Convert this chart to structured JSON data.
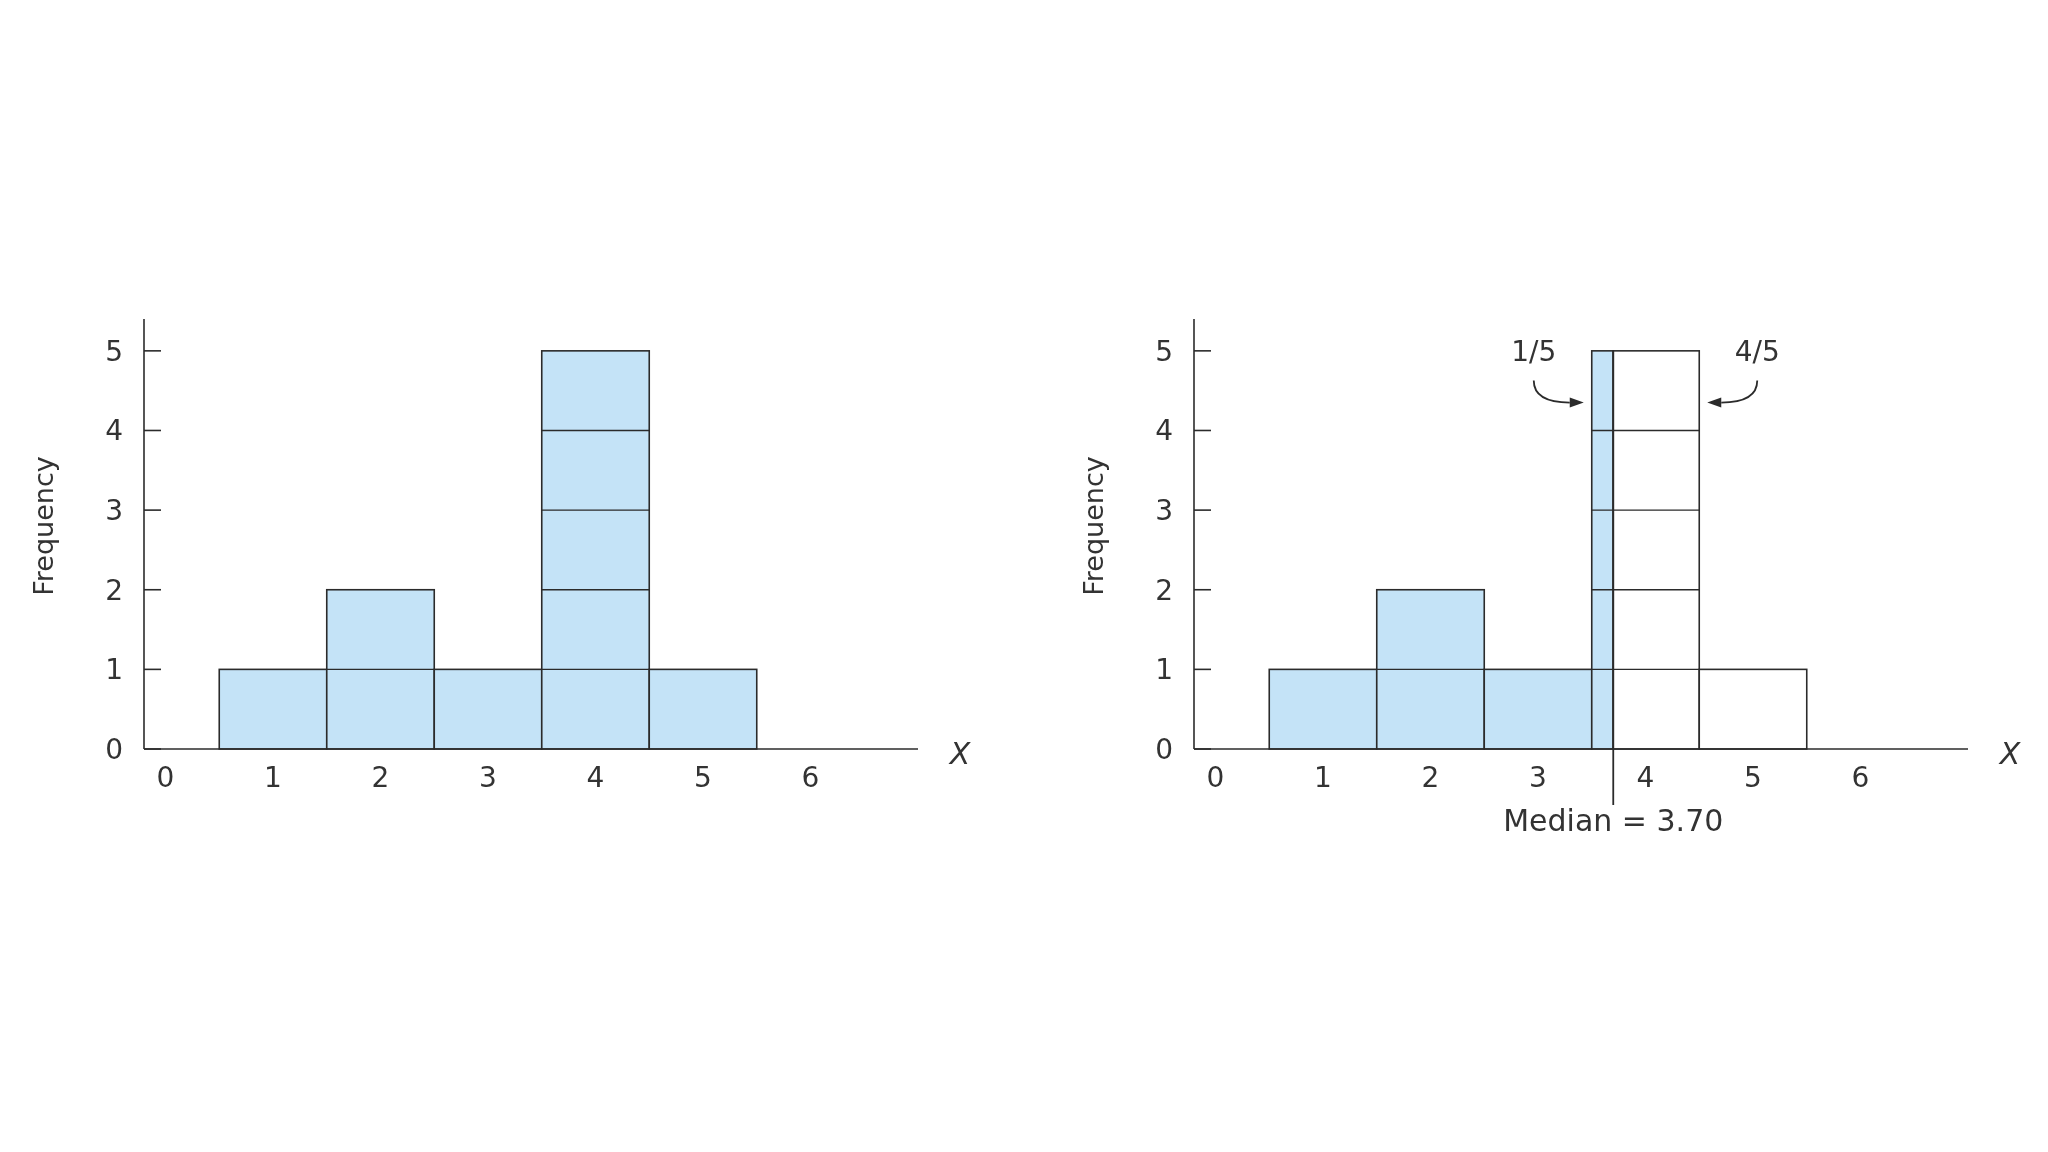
{
  "chart_data": [
    {
      "type": "histogram",
      "xlabel": "X",
      "ylabel": "Frequency",
      "bins": [
        0.5,
        1.5,
        2.5,
        3.5,
        4.5,
        5.5
      ],
      "values": [
        1,
        2,
        1,
        5,
        1
      ],
      "color": "#c4e3f7",
      "xlim": [
        -0.2,
        7
      ],
      "xticks": [
        0,
        1,
        2,
        3,
        4,
        5,
        6
      ],
      "ylim": [
        0,
        5.4
      ],
      "yticks": [
        0,
        1,
        2,
        3,
        4,
        5
      ]
    },
    {
      "type": "histogram",
      "xlabel": "X",
      "ylabel": "Frequency",
      "bins": [
        0.5,
        1.5,
        2.5,
        3.5,
        3.7,
        4.5,
        5.5
      ],
      "values": [
        1,
        2,
        1,
        5,
        5,
        1
      ],
      "colors": [
        "#c4e3f7",
        "#c4e3f7",
        "#c4e3f7",
        "#c4e3f7",
        "#ffffff",
        "#ffffff"
      ],
      "xlim": [
        -0.2,
        7
      ],
      "xticks": [
        0,
        1,
        2,
        3,
        4,
        5,
        6
      ],
      "ylim": [
        0,
        5.4
      ],
      "yticks": [
        0,
        1,
        2,
        3,
        4,
        5
      ],
      "ref_lines": [
        {
          "axis": "x",
          "value": 3.7,
          "label": "Median = 3.70"
        }
      ],
      "annotations": [
        {
          "text": "1/5",
          "x": 3.5,
          "y": 4.35
        },
        {
          "text": "4/5",
          "x": 4.5,
          "y": 4.35
        }
      ]
    }
  ]
}
